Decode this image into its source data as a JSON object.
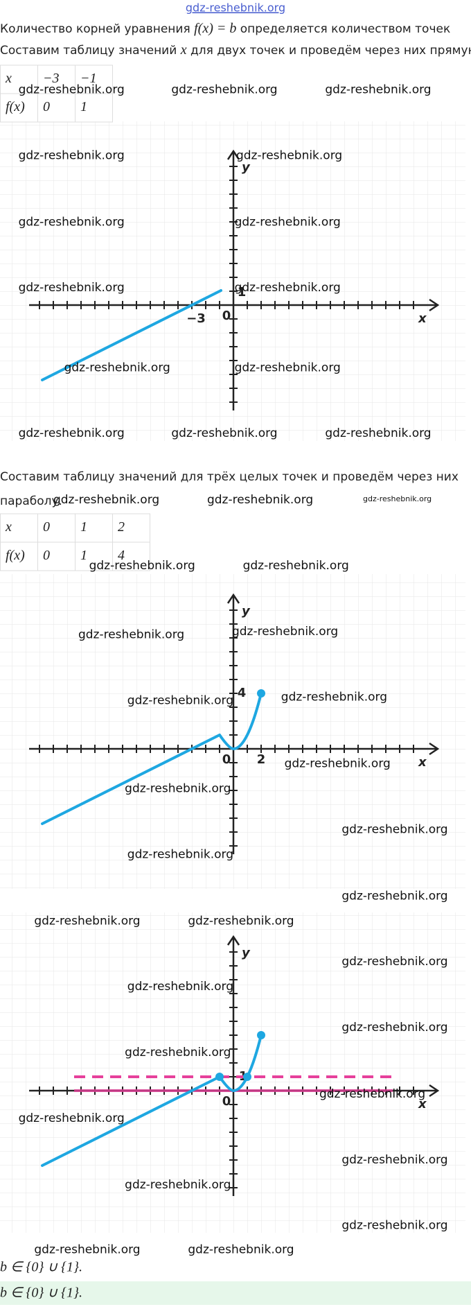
{
  "header": {
    "watermark": "gdz-reshebnik.org"
  },
  "intro": {
    "before": "Количество корней уравнения ",
    "math": "f(x) = b",
    "after": " определяется количеством точек"
  },
  "step1": {
    "before": "Составим таблицу значений ",
    "math": "x",
    "after": " для двух точек и проведём через них прямую."
  },
  "table1": {
    "rows": [
      [
        "x",
        "−3",
        "−1"
      ],
      [
        "f(x)",
        "0",
        "1"
      ]
    ]
  },
  "graph1": {
    "x_label": "x",
    "y_label": "y",
    "labels": [
      "−3",
      "0",
      "1"
    ]
  },
  "step2": {
    "line1": "Составим таблицу значений для трёх целых точек и проведём через них",
    "line2": "параболу."
  },
  "table2": {
    "rows": [
      [
        "x",
        "0",
        "1",
        "2"
      ],
      [
        "f(x)",
        "0",
        "1",
        "4"
      ]
    ]
  },
  "graph2": {
    "x_label": "x",
    "y_label": "y",
    "labels": [
      "0",
      "2",
      "4"
    ]
  },
  "graph3": {
    "x_label": "x",
    "y_label": "y",
    "labels": [
      "0",
      "1"
    ]
  },
  "answer": {
    "text": "b ∈ {0} ∪ {1}.",
    "highlighted": "b ∈ {0} ∪ {1}."
  },
  "watermarks": [
    "gdz-reshebnik.org",
    "gdz-reshebnik.org",
    "gdz-reshebnik.org",
    "gdz-reshebnik.org",
    "gdz-reshebnik.org",
    "gdz-reshebnik.org",
    "gdz-reshebnik.org",
    "gdz-reshebnik.org",
    "gdz-reshebnik.org",
    "gdz-reshebnik.org",
    "gdz-reshebnik.org",
    "gdz-reshebnik.org",
    "gdz-reshebnik.org",
    "gdz-reshebnik.org",
    "gdz-reshebnik.org",
    "gdz-reshebnik.org",
    "gdz-reshebnik.org",
    "gdz-reshebnik.org",
    "gdz-reshebnik.org",
    "gdz-reshebnik.org",
    "gdz-reshebnik.org",
    "gdz-reshebnik.org",
    "gdz-reshebnik.org",
    "gdz-reshebnik.org",
    "gdz-reshebnik.org",
    "gdz-reshebnik.org",
    "gdz-reshebnik.org",
    "gdz-reshebnik.org",
    "gdz-reshebnik.org",
    "gdz-reshebnik.org",
    "gdz-reshebnik.org",
    "gdz-reshebnik.org",
    "gdz-reshebnik.org",
    "gdz-reshebnik.org",
    "gdz-reshebnik.org",
    "gdz-reshebnik.org",
    "gdz-reshebnik.org",
    "gdz-reshebnik.org",
    "gdz-reshebnik.org",
    "gdz-reshebnik.org",
    "gdz-reshebnik.org"
  ]
}
